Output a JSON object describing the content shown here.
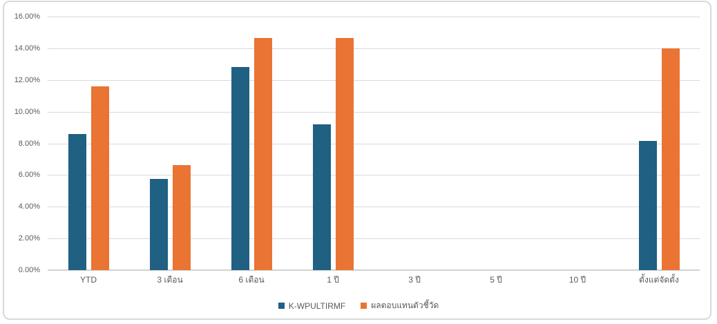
{
  "chart_data": {
    "type": "bar",
    "title": "",
    "xlabel": "",
    "ylabel": "",
    "categories": [
      "YTD",
      "3 เดือน",
      "6 เดือน",
      "1 ปี",
      "3 ปี",
      "5 ปี",
      "10 ปี",
      "ตั้งแต่จัดตั้ง"
    ],
    "series": [
      {
        "name": "K-WPULTIRMF",
        "color": "#1F6083",
        "values": [
          8.59,
          5.75,
          12.82,
          9.2,
          null,
          null,
          null,
          8.15
        ]
      },
      {
        "name": "ผลตอบแทนตัวชี้วัด",
        "color": "#E97433",
        "values": [
          11.6,
          6.63,
          14.64,
          14.63,
          null,
          null,
          null,
          14.0
        ]
      }
    ],
    "y_axis": {
      "min": 0,
      "max": 16,
      "step": 2,
      "ticks": [
        0,
        2,
        4,
        6,
        8,
        10,
        12,
        14,
        16
      ],
      "tick_labels": [
        "0.00%",
        "2.00%",
        "4.00%",
        "6.00%",
        "8.00%",
        "10.00%",
        "12.00%",
        "14.00%",
        "16.00%"
      ]
    },
    "grid": true,
    "legend_position": "bottom",
    "colors": {
      "gridline": "#d9d9d9",
      "axis_line": "#d1d1d1",
      "tick_label": "#595959",
      "frame_border": "#d9d9d9",
      "background": "#ffffff"
    }
  }
}
